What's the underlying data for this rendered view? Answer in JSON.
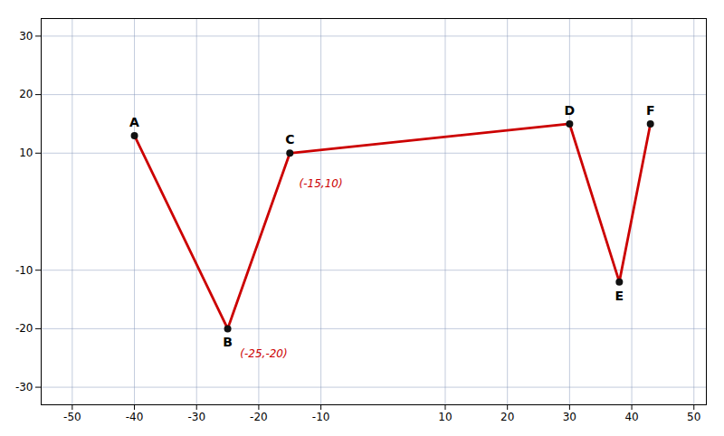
{
  "chart_data": {
    "type": "line",
    "x": [
      -40,
      -25,
      -15,
      30,
      38,
      43
    ],
    "values": [
      13,
      -20,
      10,
      15,
      -12,
      15
    ],
    "labels": [
      "A",
      "B",
      "C",
      "D",
      "E",
      "F"
    ],
    "color": "#cc0000",
    "marker": "circle",
    "xlim": [
      -55,
      52
    ],
    "ylim": [
      -33,
      33
    ],
    "xticks": [
      -50,
      -40,
      -30,
      -20,
      -10,
      10,
      20,
      30,
      40,
      50
    ],
    "yticks": [
      -30,
      -20,
      -10,
      10,
      20,
      30
    ],
    "grid": true,
    "annotations": [
      {
        "text": "(-15,10)",
        "x": -13.5,
        "y": 5.5,
        "color": "#cc0000"
      },
      {
        "text": "(-25,-20)",
        "x": -23,
        "y": -23.5,
        "color": "#cc0000"
      }
    ]
  }
}
